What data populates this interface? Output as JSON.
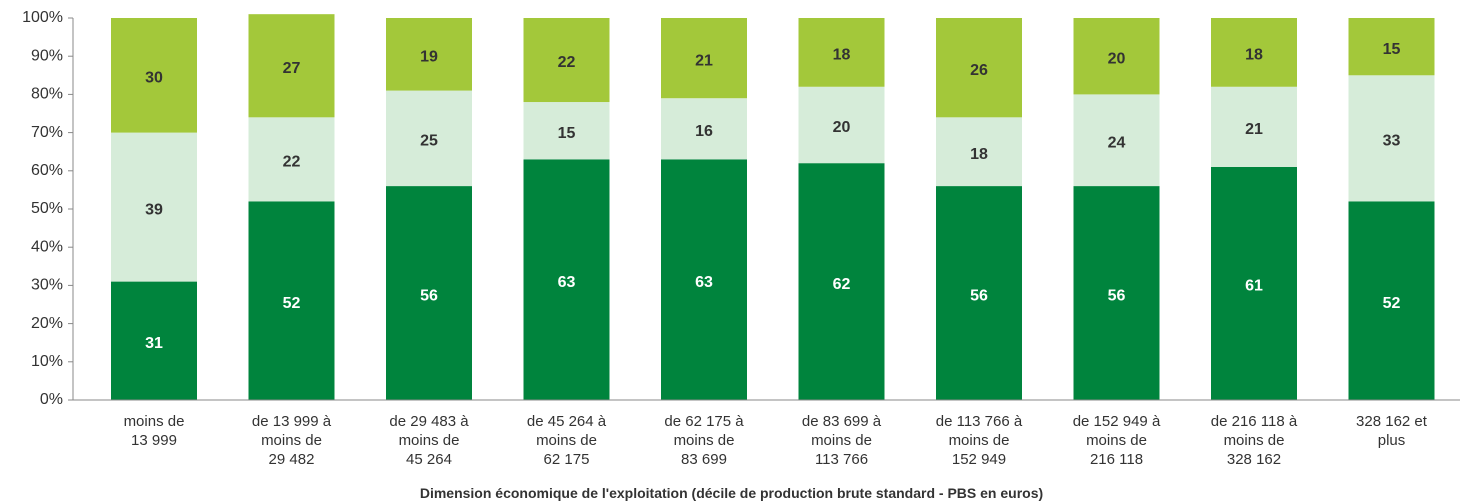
{
  "chart_data": {
    "type": "stacked_bar",
    "x_label": "Dimension économique de l'exploitation (décile de production brute standard - PBS en euros)",
    "categories": [
      "moins de\n13 999",
      "de 13 999 à\nmoins de\n29 482",
      "de 29 483 à\nmoins de\n45 264",
      "de 45 264 à\nmoins de\n62 175",
      "de 62 175 à\nmoins de\n83 699",
      "de 83 699 à\nmoins de\n113 766",
      "de 113 766 à\nmoins de\n152 949",
      "de 152 949 à\nmoins de\n216 118",
      "de 216 118 à\nmoins de\n328 162",
      "328 162 et\nplus"
    ],
    "series": [
      {
        "color": "#00843d",
        "label_color": "#ffffff",
        "values": [
          31,
          52,
          56,
          63,
          63,
          62,
          56,
          56,
          61,
          52
        ]
      },
      {
        "color": "#d6ecd9",
        "label_color": "#333333",
        "values": [
          39,
          22,
          25,
          15,
          16,
          20,
          18,
          24,
          21,
          33
        ]
      },
      {
        "color": "#a3c83a",
        "label_color": "#333333",
        "values": [
          30,
          27,
          19,
          22,
          21,
          18,
          26,
          20,
          18,
          15
        ]
      }
    ],
    "ylim": [
      0,
      100
    ],
    "yticks": [
      {
        "value": 0,
        "label": "0%"
      },
      {
        "value": 10,
        "label": "10%"
      },
      {
        "value": 20,
        "label": "20%"
      },
      {
        "value": 30,
        "label": "30%"
      },
      {
        "value": 40,
        "label": "40%"
      },
      {
        "value": 50,
        "label": "50%"
      },
      {
        "value": 60,
        "label": "60%"
      },
      {
        "value": 70,
        "label": "70%"
      },
      {
        "value": 80,
        "label": "80%"
      },
      {
        "value": 90,
        "label": "90%"
      },
      {
        "value": 100,
        "label": "100%"
      }
    ]
  }
}
